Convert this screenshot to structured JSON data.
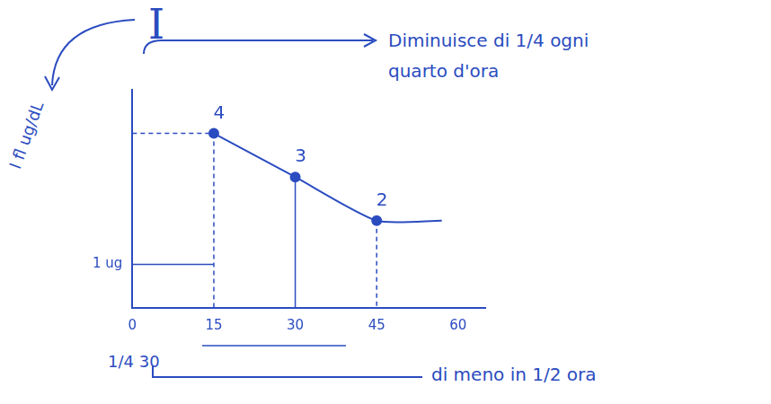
{
  "chart_data": {
    "type": "line",
    "title": "I",
    "y_label": "I fl ug/dL",
    "annotations": [
      "Diminuisce di 1/4 ogni quarto d'ora",
      "1/4 30",
      "di meno in 1/2 ora"
    ],
    "x": [
      15,
      30,
      45,
      57
    ],
    "values": [
      4,
      3,
      2,
      2
    ],
    "value_labels": [
      "4",
      "3",
      "2",
      null
    ],
    "data_labels": true,
    "color": "#2b4cc0",
    "marker": "circle",
    "xlim": [
      0,
      65
    ],
    "xticks": [
      0,
      15,
      30,
      45,
      60
    ],
    "ylim": [
      0,
      5
    ],
    "yticks": [
      {
        "value": 1,
        "label": "1 ug"
      }
    ],
    "grid": false
  }
}
